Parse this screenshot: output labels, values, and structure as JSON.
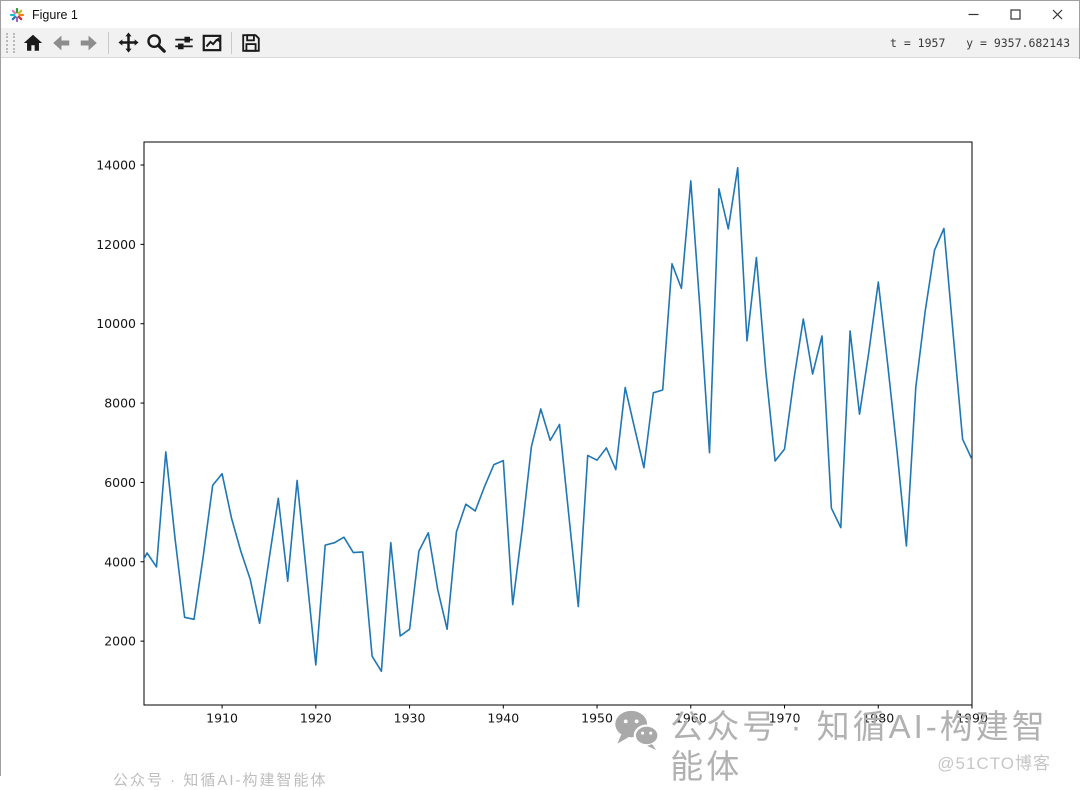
{
  "window": {
    "title": "Figure 1",
    "controls": [
      {
        "id": "minimize",
        "icon": "minimize-icon"
      },
      {
        "id": "maximize",
        "icon": "maximize-icon"
      },
      {
        "id": "close",
        "icon": "close-icon"
      }
    ]
  },
  "toolbar": {
    "buttons": [
      {
        "id": "home",
        "icon": "home-icon",
        "disabled": false
      },
      {
        "id": "back",
        "icon": "back-arrow-icon",
        "disabled": true
      },
      {
        "id": "forward",
        "icon": "forward-arrow-icon",
        "disabled": true
      },
      {
        "id": "pan",
        "icon": "pan-icon",
        "disabled": false
      },
      {
        "id": "zoom",
        "icon": "zoom-icon",
        "disabled": false
      },
      {
        "id": "configure-subplots",
        "icon": "subplots-icon",
        "disabled": false
      },
      {
        "id": "customize",
        "icon": "customize-icon",
        "disabled": false
      },
      {
        "id": "save",
        "icon": "save-icon",
        "disabled": false
      }
    ],
    "status": "t = 1957   y = 9357.682143"
  },
  "watermark": {
    "icon": "wechat-icon",
    "text": "公众号 · 知循AI-构建智能体",
    "subtext": "@51CTO博客",
    "partial": "公众号 · 知循AI-构建智能体"
  },
  "colors": {
    "toolbar_bg": "#f1f1f1",
    "figure_bg": "#ffffff",
    "watermark_gray": "#b1b1b1"
  },
  "chart_data": {
    "type": "line",
    "title": "",
    "xlabel": "",
    "ylabel": "",
    "grid": false,
    "legend": null,
    "line_color": "#1f77b4",
    "xlim": [
      1901.67,
      1990
    ],
    "ylim": [
      390,
      14580
    ],
    "xticks": [
      1910,
      1920,
      1930,
      1940,
      1950,
      1960,
      1970,
      1980,
      1990
    ],
    "yticks": [
      2000,
      4000,
      6000,
      8000,
      10000,
      12000,
      14000
    ],
    "x": [
      1901,
      1902,
      1903,
      1904,
      1905,
      1906,
      1907,
      1908,
      1909,
      1910,
      1911,
      1912,
      1913,
      1914,
      1915,
      1916,
      1917,
      1918,
      1919,
      1920,
      1921,
      1922,
      1923,
      1924,
      1925,
      1926,
      1927,
      1928,
      1929,
      1930,
      1931,
      1932,
      1933,
      1934,
      1935,
      1936,
      1937,
      1938,
      1939,
      1940,
      1941,
      1942,
      1943,
      1944,
      1945,
      1946,
      1947,
      1948,
      1949,
      1950,
      1951,
      1952,
      1953,
      1954,
      1955,
      1956,
      1957,
      1958,
      1959,
      1960,
      1961,
      1962,
      1963,
      1964,
      1965,
      1966,
      1967,
      1968,
      1969,
      1970,
      1971,
      1972,
      1973,
      1974,
      1975,
      1976,
      1977,
      1978,
      1979,
      1980,
      1981,
      1982,
      1983,
      1984,
      1985,
      1986,
      1987,
      1988,
      1989,
      1990
    ],
    "values": [
      3800,
      4220,
      3870,
      6770,
      4550,
      2600,
      2550,
      4150,
      5930,
      6220,
      5100,
      4270,
      3560,
      2450,
      4050,
      5600,
      3510,
      6050,
      3700,
      1400,
      4420,
      4480,
      4620,
      4230,
      4250,
      1620,
      1240,
      4480,
      2130,
      2300,
      4270,
      4730,
      3300,
      2300,
      4750,
      5450,
      5280,
      5900,
      6450,
      6550,
      2920,
      4800,
      6900,
      7850,
      7060,
      7460,
      5150,
      2870,
      6680,
      6560,
      6870,
      6320,
      8390,
      7380,
      6370,
      8260,
      8330,
      11510,
      10890,
      13600,
      10300,
      6750,
      13400,
      12390,
      13930,
      9570,
      11670,
      8800,
      6540,
      6840,
      8600,
      10120,
      8730,
      9690,
      5350,
      4860,
      9820,
      7720,
      9300,
      11050,
      9000,
      6800,
      4400,
      8400,
      10300,
      11850,
      12400,
      9700,
      7090,
      6580
    ]
  }
}
